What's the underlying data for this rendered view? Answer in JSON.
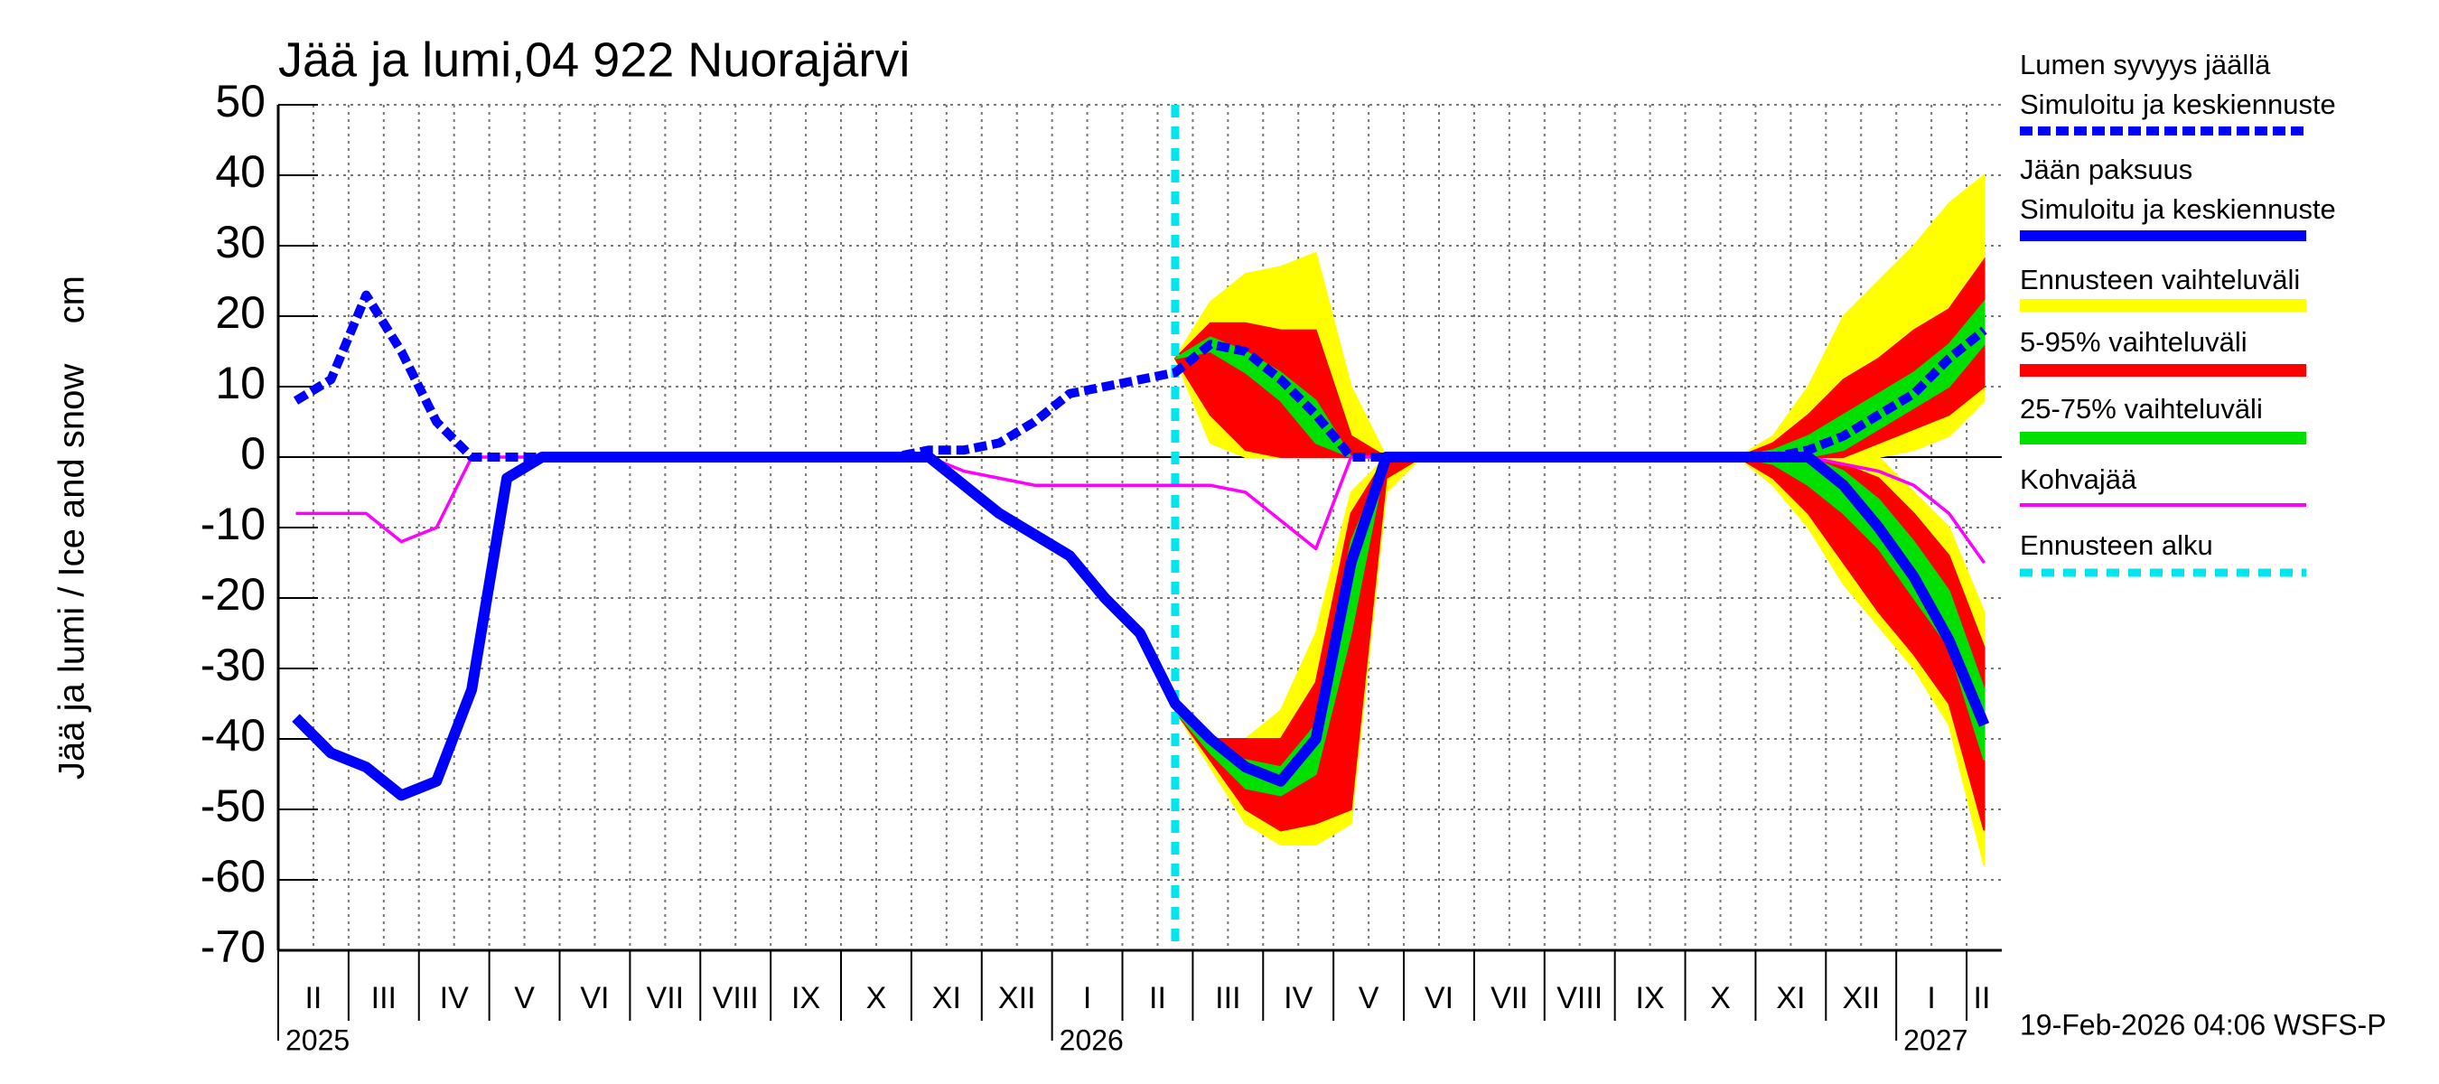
{
  "chart_data": {
    "type": "line",
    "title": "Jää ja lumi,04 922 Nuorajärvi",
    "ylabel": "Jää ja lumi / Ice and snow    cm",
    "categories": [
      "II",
      null,
      "III",
      null,
      "IV",
      null,
      "V",
      null,
      "VI",
      null,
      "VII",
      null,
      "VIII",
      null,
      "IX",
      null,
      "X",
      null,
      "XI",
      null,
      "XII",
      null,
      "I",
      null,
      "II",
      null,
      "III",
      null,
      "IV",
      null,
      "V",
      null,
      "VI",
      null,
      "VII",
      null,
      "VIII",
      null,
      "IX",
      null,
      "X",
      null,
      "XI",
      null,
      "XII",
      null,
      "I",
      null,
      "II"
    ],
    "years": [
      "2025",
      null,
      null,
      null,
      null,
      null,
      null,
      null,
      null,
      null,
      null,
      null,
      null,
      null,
      null,
      null,
      null,
      null,
      null,
      null,
      null,
      null,
      "2026",
      null,
      null,
      null,
      null,
      null,
      null,
      null,
      null,
      null,
      null,
      null,
      null,
      null,
      null,
      null,
      null,
      null,
      null,
      null,
      null,
      null,
      null,
      null,
      "2027",
      null,
      null
    ],
    "ylim": [
      -70,
      50
    ],
    "yticks": [
      -70,
      -60,
      -50,
      -40,
      -30,
      -20,
      -10,
      0,
      10,
      20,
      30,
      40,
      50
    ],
    "grid": true,
    "series": [
      {
        "name": "Lumen syvyys jäällä",
        "subname": "Simuloitu ja keskiennuste",
        "color": "#0000ff",
        "dashed": true,
        "values": [
          8,
          11,
          23,
          15,
          5,
          0,
          0,
          0,
          0,
          0,
          0,
          0,
          0,
          0,
          0,
          0,
          0,
          0,
          1,
          1,
          2,
          5,
          9,
          10,
          11,
          12,
          16,
          15,
          11,
          6,
          0,
          0,
          0,
          0,
          0,
          0,
          0,
          0,
          0,
          0,
          0,
          0,
          0,
          1,
          3,
          6,
          9,
          14,
          18
        ]
      },
      {
        "name": "Jään paksuus",
        "subname": "Simuloitu ja keskiennuste",
        "color": "#0000ff",
        "dashed": false,
        "values": [
          -37,
          -42,
          -44,
          -48,
          -46,
          -33,
          -3,
          0,
          0,
          0,
          0,
          0,
          0,
          0,
          0,
          0,
          0,
          0,
          0,
          -4,
          -8,
          -11,
          -14,
          -20,
          -25,
          -35,
          -40,
          -44,
          -46,
          -40,
          -15,
          0,
          0,
          0,
          0,
          0,
          0,
          0,
          0,
          0,
          0,
          0,
          0,
          0,
          -4,
          -10,
          -17,
          -26,
          -38
        ]
      },
      {
        "name": "Kohvajää",
        "color": "#ff00ff",
        "dashed": false,
        "values": [
          -8,
          -8,
          -8,
          -12,
          -10,
          0,
          0,
          0,
          0,
          0,
          0,
          0,
          0,
          0,
          0,
          0,
          0,
          0,
          0,
          -2,
          -3,
          -4,
          -4,
          -4,
          -4,
          -4,
          -4,
          -5,
          -9,
          -13,
          0,
          0,
          0,
          0,
          0,
          0,
          0,
          0,
          0,
          0,
          0,
          0,
          0,
          0,
          -1,
          -2,
          -4,
          -8,
          -15
        ]
      }
    ],
    "bands": [
      {
        "name": "Ennusteen vaihteluväli",
        "color": "#ffff00",
        "snow_high": [
          null,
          null,
          null,
          null,
          null,
          null,
          null,
          null,
          null,
          null,
          null,
          null,
          null,
          null,
          null,
          null,
          null,
          null,
          null,
          null,
          null,
          null,
          null,
          null,
          null,
          14,
          22,
          26,
          27,
          29,
          10,
          0,
          0,
          0,
          0,
          0,
          0,
          0,
          0,
          0,
          0,
          0,
          3,
          10,
          20,
          25,
          30,
          36,
          40
        ],
        "snow_low": [
          null,
          null,
          null,
          null,
          null,
          null,
          null,
          null,
          null,
          null,
          null,
          null,
          null,
          null,
          null,
          null,
          null,
          null,
          null,
          null,
          null,
          null,
          null,
          null,
          null,
          14,
          2,
          0,
          0,
          0,
          0,
          0,
          0,
          0,
          0,
          0,
          0,
          0,
          0,
          0,
          0,
          0,
          0,
          0,
          0,
          0,
          1,
          3,
          8
        ],
        "ice_high": [
          null,
          null,
          null,
          null,
          null,
          null,
          null,
          null,
          null,
          null,
          null,
          null,
          null,
          null,
          null,
          null,
          null,
          null,
          null,
          null,
          null,
          null,
          null,
          null,
          null,
          -36,
          -40,
          -40,
          -36,
          -25,
          -5,
          0,
          0,
          0,
          0,
          0,
          0,
          0,
          0,
          0,
          0,
          0,
          0,
          0,
          0,
          0,
          -5,
          -10,
          -22
        ],
        "ice_low": [
          null,
          null,
          null,
          null,
          null,
          null,
          null,
          null,
          null,
          null,
          null,
          null,
          null,
          null,
          null,
          null,
          null,
          null,
          null,
          null,
          null,
          null,
          null,
          null,
          null,
          -36,
          -44,
          -52,
          -55,
          -55,
          -52,
          -5,
          0,
          0,
          0,
          0,
          0,
          0,
          0,
          0,
          0,
          0,
          -4,
          -10,
          -18,
          -24,
          -30,
          -38,
          -58
        ]
      },
      {
        "name": "5-95% vaihteluväli",
        "color": "#ff0000",
        "snow_high": [
          null,
          null,
          null,
          null,
          null,
          null,
          null,
          null,
          null,
          null,
          null,
          null,
          null,
          null,
          null,
          null,
          null,
          null,
          null,
          null,
          null,
          null,
          null,
          null,
          null,
          14,
          19,
          19,
          18,
          18,
          3,
          0,
          0,
          0,
          0,
          0,
          0,
          0,
          0,
          0,
          0,
          0,
          2,
          6,
          11,
          14,
          18,
          21,
          28
        ],
        "snow_low": [
          null,
          null,
          null,
          null,
          null,
          null,
          null,
          null,
          null,
          null,
          null,
          null,
          null,
          null,
          null,
          null,
          null,
          null,
          null,
          null,
          null,
          null,
          null,
          null,
          null,
          14,
          6,
          1,
          0,
          0,
          0,
          0,
          0,
          0,
          0,
          0,
          0,
          0,
          0,
          0,
          0,
          0,
          0,
          0,
          0,
          2,
          4,
          6,
          10
        ],
        "ice_high": [
          null,
          null,
          null,
          null,
          null,
          null,
          null,
          null,
          null,
          null,
          null,
          null,
          null,
          null,
          null,
          null,
          null,
          null,
          null,
          null,
          null,
          null,
          null,
          null,
          null,
          -36,
          -40,
          -40,
          -40,
          -32,
          -8,
          0,
          0,
          0,
          0,
          0,
          0,
          0,
          0,
          0,
          0,
          0,
          0,
          0,
          -1,
          -3,
          -8,
          -14,
          -27
        ],
        "ice_low": [
          null,
          null,
          null,
          null,
          null,
          null,
          null,
          null,
          null,
          null,
          null,
          null,
          null,
          null,
          null,
          null,
          null,
          null,
          null,
          null,
          null,
          null,
          null,
          null,
          null,
          -36,
          -43,
          -50,
          -53,
          -52,
          -50,
          -3,
          0,
          0,
          0,
          0,
          0,
          0,
          0,
          0,
          0,
          0,
          -3,
          -8,
          -15,
          -22,
          -28,
          -35,
          -53
        ]
      },
      {
        "name": "25-75% vaihteluväli",
        "color": "#00e000",
        "snow_high": [
          null,
          null,
          null,
          null,
          null,
          null,
          null,
          null,
          null,
          null,
          null,
          null,
          null,
          null,
          null,
          null,
          null,
          null,
          null,
          null,
          null,
          null,
          null,
          null,
          null,
          14,
          17,
          15,
          12,
          8,
          0,
          0,
          0,
          0,
          0,
          0,
          0,
          0,
          0,
          0,
          0,
          0,
          1,
          3,
          6,
          9,
          12,
          16,
          22
        ],
        "snow_low": [
          null,
          null,
          null,
          null,
          null,
          null,
          null,
          null,
          null,
          null,
          null,
          null,
          null,
          null,
          null,
          null,
          null,
          null,
          null,
          null,
          null,
          null,
          null,
          null,
          null,
          14,
          15,
          12,
          8,
          2,
          0,
          0,
          0,
          0,
          0,
          0,
          0,
          0,
          0,
          0,
          0,
          0,
          0,
          0,
          1,
          4,
          7,
          10,
          16
        ],
        "ice_high": [
          null,
          null,
          null,
          null,
          null,
          null,
          null,
          null,
          null,
          null,
          null,
          null,
          null,
          null,
          null,
          null,
          null,
          null,
          null,
          null,
          null,
          null,
          null,
          null,
          null,
          -36,
          -41,
          -43,
          -44,
          -38,
          -12,
          0,
          0,
          0,
          0,
          0,
          0,
          0,
          0,
          0,
          0,
          0,
          0,
          0,
          -2,
          -6,
          -12,
          -19,
          -33
        ],
        "ice_low": [
          null,
          null,
          null,
          null,
          null,
          null,
          null,
          null,
          null,
          null,
          null,
          null,
          null,
          null,
          null,
          null,
          null,
          null,
          null,
          null,
          null,
          null,
          null,
          null,
          null,
          -36,
          -42,
          -47,
          -48,
          -45,
          -25,
          0,
          0,
          0,
          0,
          0,
          0,
          0,
          0,
          0,
          0,
          0,
          -1,
          -4,
          -8,
          -13,
          -20,
          -27,
          -43
        ]
      }
    ],
    "forecast_start": {
      "name": "Ennusteen alku",
      "color": "#00e5ee"
    },
    "footer": "19-Feb-2026 04:06 WSFS-P"
  }
}
